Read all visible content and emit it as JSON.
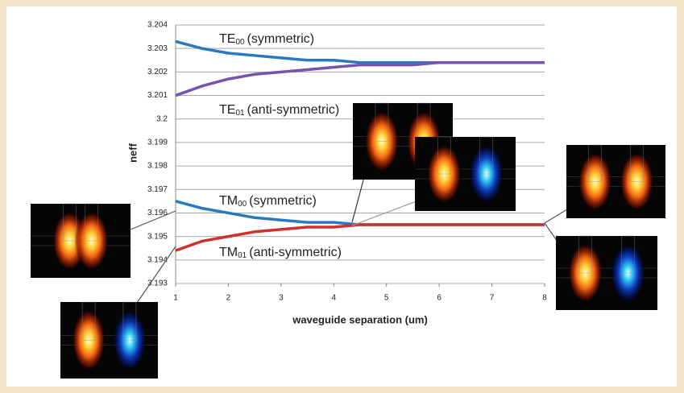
{
  "chart_data": {
    "type": "line",
    "x_label": "waveguide separation (um)",
    "y_label": "neff",
    "x": [
      1,
      1.5,
      2,
      2.5,
      3,
      3.5,
      4,
      4.5,
      5,
      5.5,
      6,
      7,
      8
    ],
    "series": [
      {
        "name": "TE00",
        "color": "#2a78c0",
        "values": [
          3.2033,
          3.203,
          3.2028,
          3.2027,
          3.2026,
          3.2025,
          3.2025,
          3.2024,
          3.2024,
          3.2024,
          3.2024,
          3.2024,
          3.2024
        ]
      },
      {
        "name": "TE01",
        "color": "#7a52ae",
        "values": [
          3.201,
          3.2014,
          3.2017,
          3.2019,
          3.202,
          3.2021,
          3.2022,
          3.2023,
          3.2023,
          3.2023,
          3.2024,
          3.2024,
          3.2024
        ]
      },
      {
        "name": "TM00",
        "color": "#2a78c0",
        "values": [
          3.1965,
          3.1962,
          3.196,
          3.1958,
          3.1957,
          3.1956,
          3.1956,
          3.1955,
          3.1955,
          3.1955,
          3.1955,
          3.1955,
          3.1955
        ]
      },
      {
        "name": "TM01",
        "color": "#d0302e",
        "values": [
          3.1944,
          3.1948,
          3.195,
          3.1952,
          3.1953,
          3.1954,
          3.1954,
          3.1955,
          3.1955,
          3.1955,
          3.1955,
          3.1955,
          3.1955
        ]
      }
    ],
    "annotations": [
      {
        "base": "TE",
        "sub": "00",
        "text": "(symmetric)"
      },
      {
        "base": "TE",
        "sub": "01",
        "text": "(anti-symmetric)"
      },
      {
        "base": "TM",
        "sub": "00",
        "text": "(symmetric)"
      },
      {
        "base": "TM",
        "sub": "01",
        "text": "(anti-symmetric)"
      }
    ],
    "xlim": [
      1,
      8
    ],
    "ylim": [
      3.193,
      3.204
    ],
    "xticks": [
      1,
      2,
      3,
      4,
      5,
      6,
      7,
      8
    ],
    "yticks": [
      3.193,
      3.194,
      3.195,
      3.196,
      3.197,
      3.198,
      3.199,
      3.2,
      3.201,
      3.202,
      3.203,
      3.204
    ],
    "grid": true
  }
}
